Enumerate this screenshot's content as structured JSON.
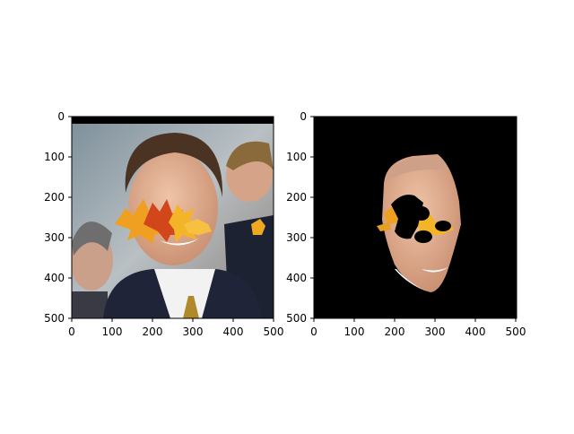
{
  "panels": [
    {
      "name": "original-with-leaves",
      "xticks": [
        "0",
        "100",
        "200",
        "300",
        "400",
        "500"
      ],
      "yticks": [
        "0",
        "100",
        "200",
        "300",
        "400",
        "500"
      ],
      "xlim": [
        0,
        500
      ],
      "ylim": [
        500,
        0
      ]
    },
    {
      "name": "masked-face",
      "xticks": [
        "0",
        "100",
        "200",
        "300",
        "400",
        "500"
      ],
      "yticks": [
        "0",
        "100",
        "200",
        "300",
        "400",
        "500"
      ],
      "xlim": [
        0,
        500
      ],
      "ylim": [
        500,
        0
      ]
    }
  ],
  "colors": {
    "skin": "#d9a68a",
    "suit": "#1f2438",
    "leaf_orange": "#f0a020",
    "leaf_red": "#d2461c",
    "background_dark": "#000000"
  }
}
